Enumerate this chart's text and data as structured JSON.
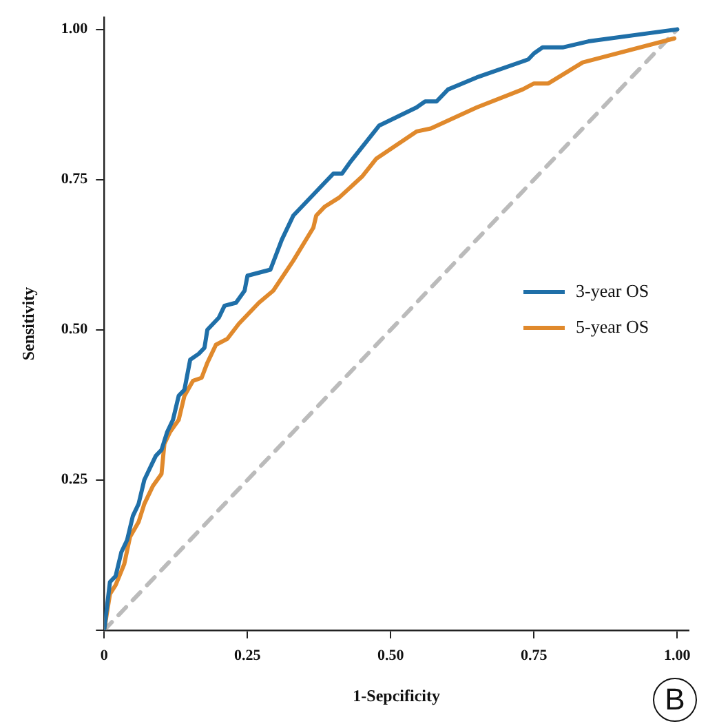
{
  "chart_data": {
    "type": "line",
    "xlabel": "1-Sepcificity",
    "ylabel": "Sensitivity",
    "annotations": [
      "B"
    ],
    "xlim": [
      0,
      1.02
    ],
    "ylim": [
      0,
      1.02
    ],
    "xticks": [
      {
        "value": 0,
        "label": "0"
      },
      0.25,
      {
        "value": 0.5,
        "label": "0.50"
      },
      0.75,
      {
        "value": 1,
        "label": "1.00"
      }
    ],
    "yticks": [
      {
        "value": 0,
        "label": null
      },
      0.25,
      {
        "value": 0.5,
        "label": "0.50"
      },
      0.75,
      {
        "value": 1,
        "label": "1.00"
      }
    ],
    "grid": false,
    "legend": "right",
    "marker": "none",
    "line_style": "solid",
    "series": [
      {
        "name": "3-year OS",
        "color": "#1f6fa8",
        "x": [
          0,
          0.01,
          0.02,
          0.03,
          0.04,
          0.05,
          0.06,
          0.07,
          0.08,
          0.09,
          0.1,
          0.11,
          0.12,
          0.13,
          0.14,
          0.15,
          0.165,
          0.175,
          0.18,
          0.2,
          0.21,
          0.23,
          0.245,
          0.25,
          0.29,
          0.31,
          0.33,
          0.375,
          0.385,
          0.4,
          0.415,
          0.43,
          0.48,
          0.545,
          0.56,
          0.58,
          0.6,
          0.65,
          0.74,
          0.75,
          0.765,
          0.8,
          0.845,
          1
        ],
        "values": [
          0,
          0.08,
          0.09,
          0.13,
          0.15,
          0.19,
          0.21,
          0.25,
          0.27,
          0.29,
          0.3,
          0.33,
          0.35,
          0.39,
          0.4,
          0.45,
          0.46,
          0.47,
          0.5,
          0.52,
          0.54,
          0.545,
          0.565,
          0.59,
          0.6,
          0.65,
          0.69,
          0.735,
          0.745,
          0.76,
          0.76,
          0.78,
          0.84,
          0.87,
          0.88,
          0.88,
          0.9,
          0.92,
          0.95,
          0.96,
          0.97,
          0.97,
          0.98,
          1
        ]
      },
      {
        "name": "5-year OS",
        "color": "#e0892c",
        "x": [
          0,
          0.01,
          0.02,
          0.035,
          0.045,
          0.06,
          0.07,
          0.085,
          0.1,
          0.105,
          0.115,
          0.13,
          0.14,
          0.155,
          0.17,
          0.18,
          0.195,
          0.215,
          0.235,
          0.27,
          0.295,
          0.33,
          0.365,
          0.37,
          0.385,
          0.41,
          0.45,
          0.475,
          0.545,
          0.57,
          0.65,
          0.73,
          0.75,
          0.775,
          0.835,
          0.995
        ],
        "values": [
          0,
          0.06,
          0.075,
          0.11,
          0.155,
          0.18,
          0.21,
          0.24,
          0.26,
          0.31,
          0.33,
          0.35,
          0.39,
          0.415,
          0.42,
          0.445,
          0.475,
          0.485,
          0.51,
          0.545,
          0.565,
          0.615,
          0.67,
          0.69,
          0.705,
          0.72,
          0.755,
          0.785,
          0.83,
          0.835,
          0.87,
          0.9,
          0.91,
          0.91,
          0.945,
          0.985
        ]
      },
      {
        "type": "line",
        "color": "#bbbbbb",
        "line_style": "dashed",
        "x": [
          0,
          1
        ],
        "values": [
          0,
          1
        ]
      }
    ]
  }
}
